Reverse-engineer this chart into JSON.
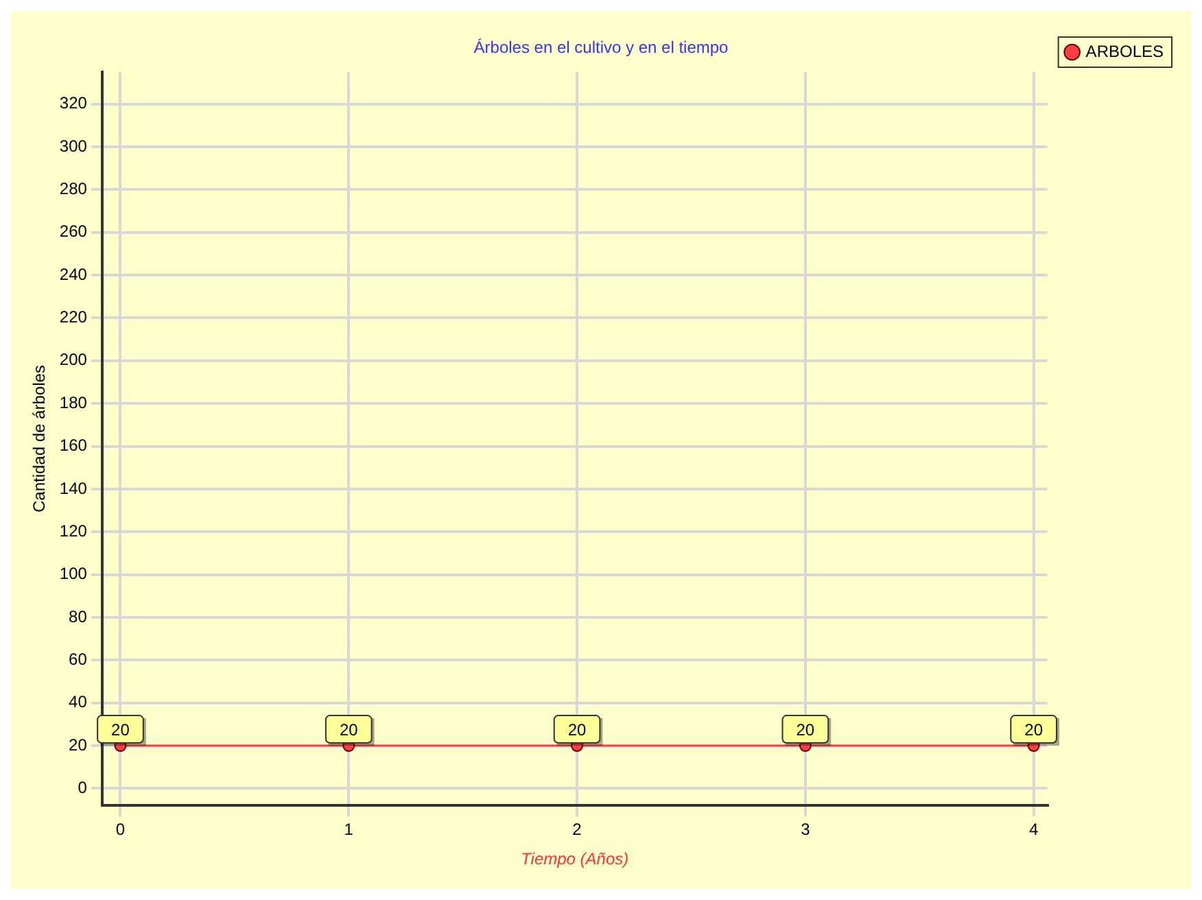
{
  "chart_data": {
    "type": "line",
    "title": "Árboles en el cultivo y en el tiempo",
    "xlabel": "Tiempo (Años)",
    "ylabel": "Cantidad de árboles",
    "x": [
      0,
      1,
      2,
      3,
      4
    ],
    "series": [
      {
        "name": "ARBOLES",
        "color": "#ff4040",
        "values": [
          20,
          20,
          20,
          20,
          20
        ]
      }
    ],
    "xlim": [
      -0.08,
      4.06
    ],
    "xticks": [
      0,
      1,
      2,
      3,
      4
    ],
    "ylim": [
      -8,
      335
    ],
    "yticks": [
      0,
      20,
      40,
      60,
      80,
      100,
      120,
      140,
      160,
      180,
      200,
      220,
      240,
      260,
      280,
      300,
      320
    ],
    "grid": true,
    "legend": "top right",
    "marker": "circle",
    "line_style": "solid",
    "data_labels": true
  }
}
